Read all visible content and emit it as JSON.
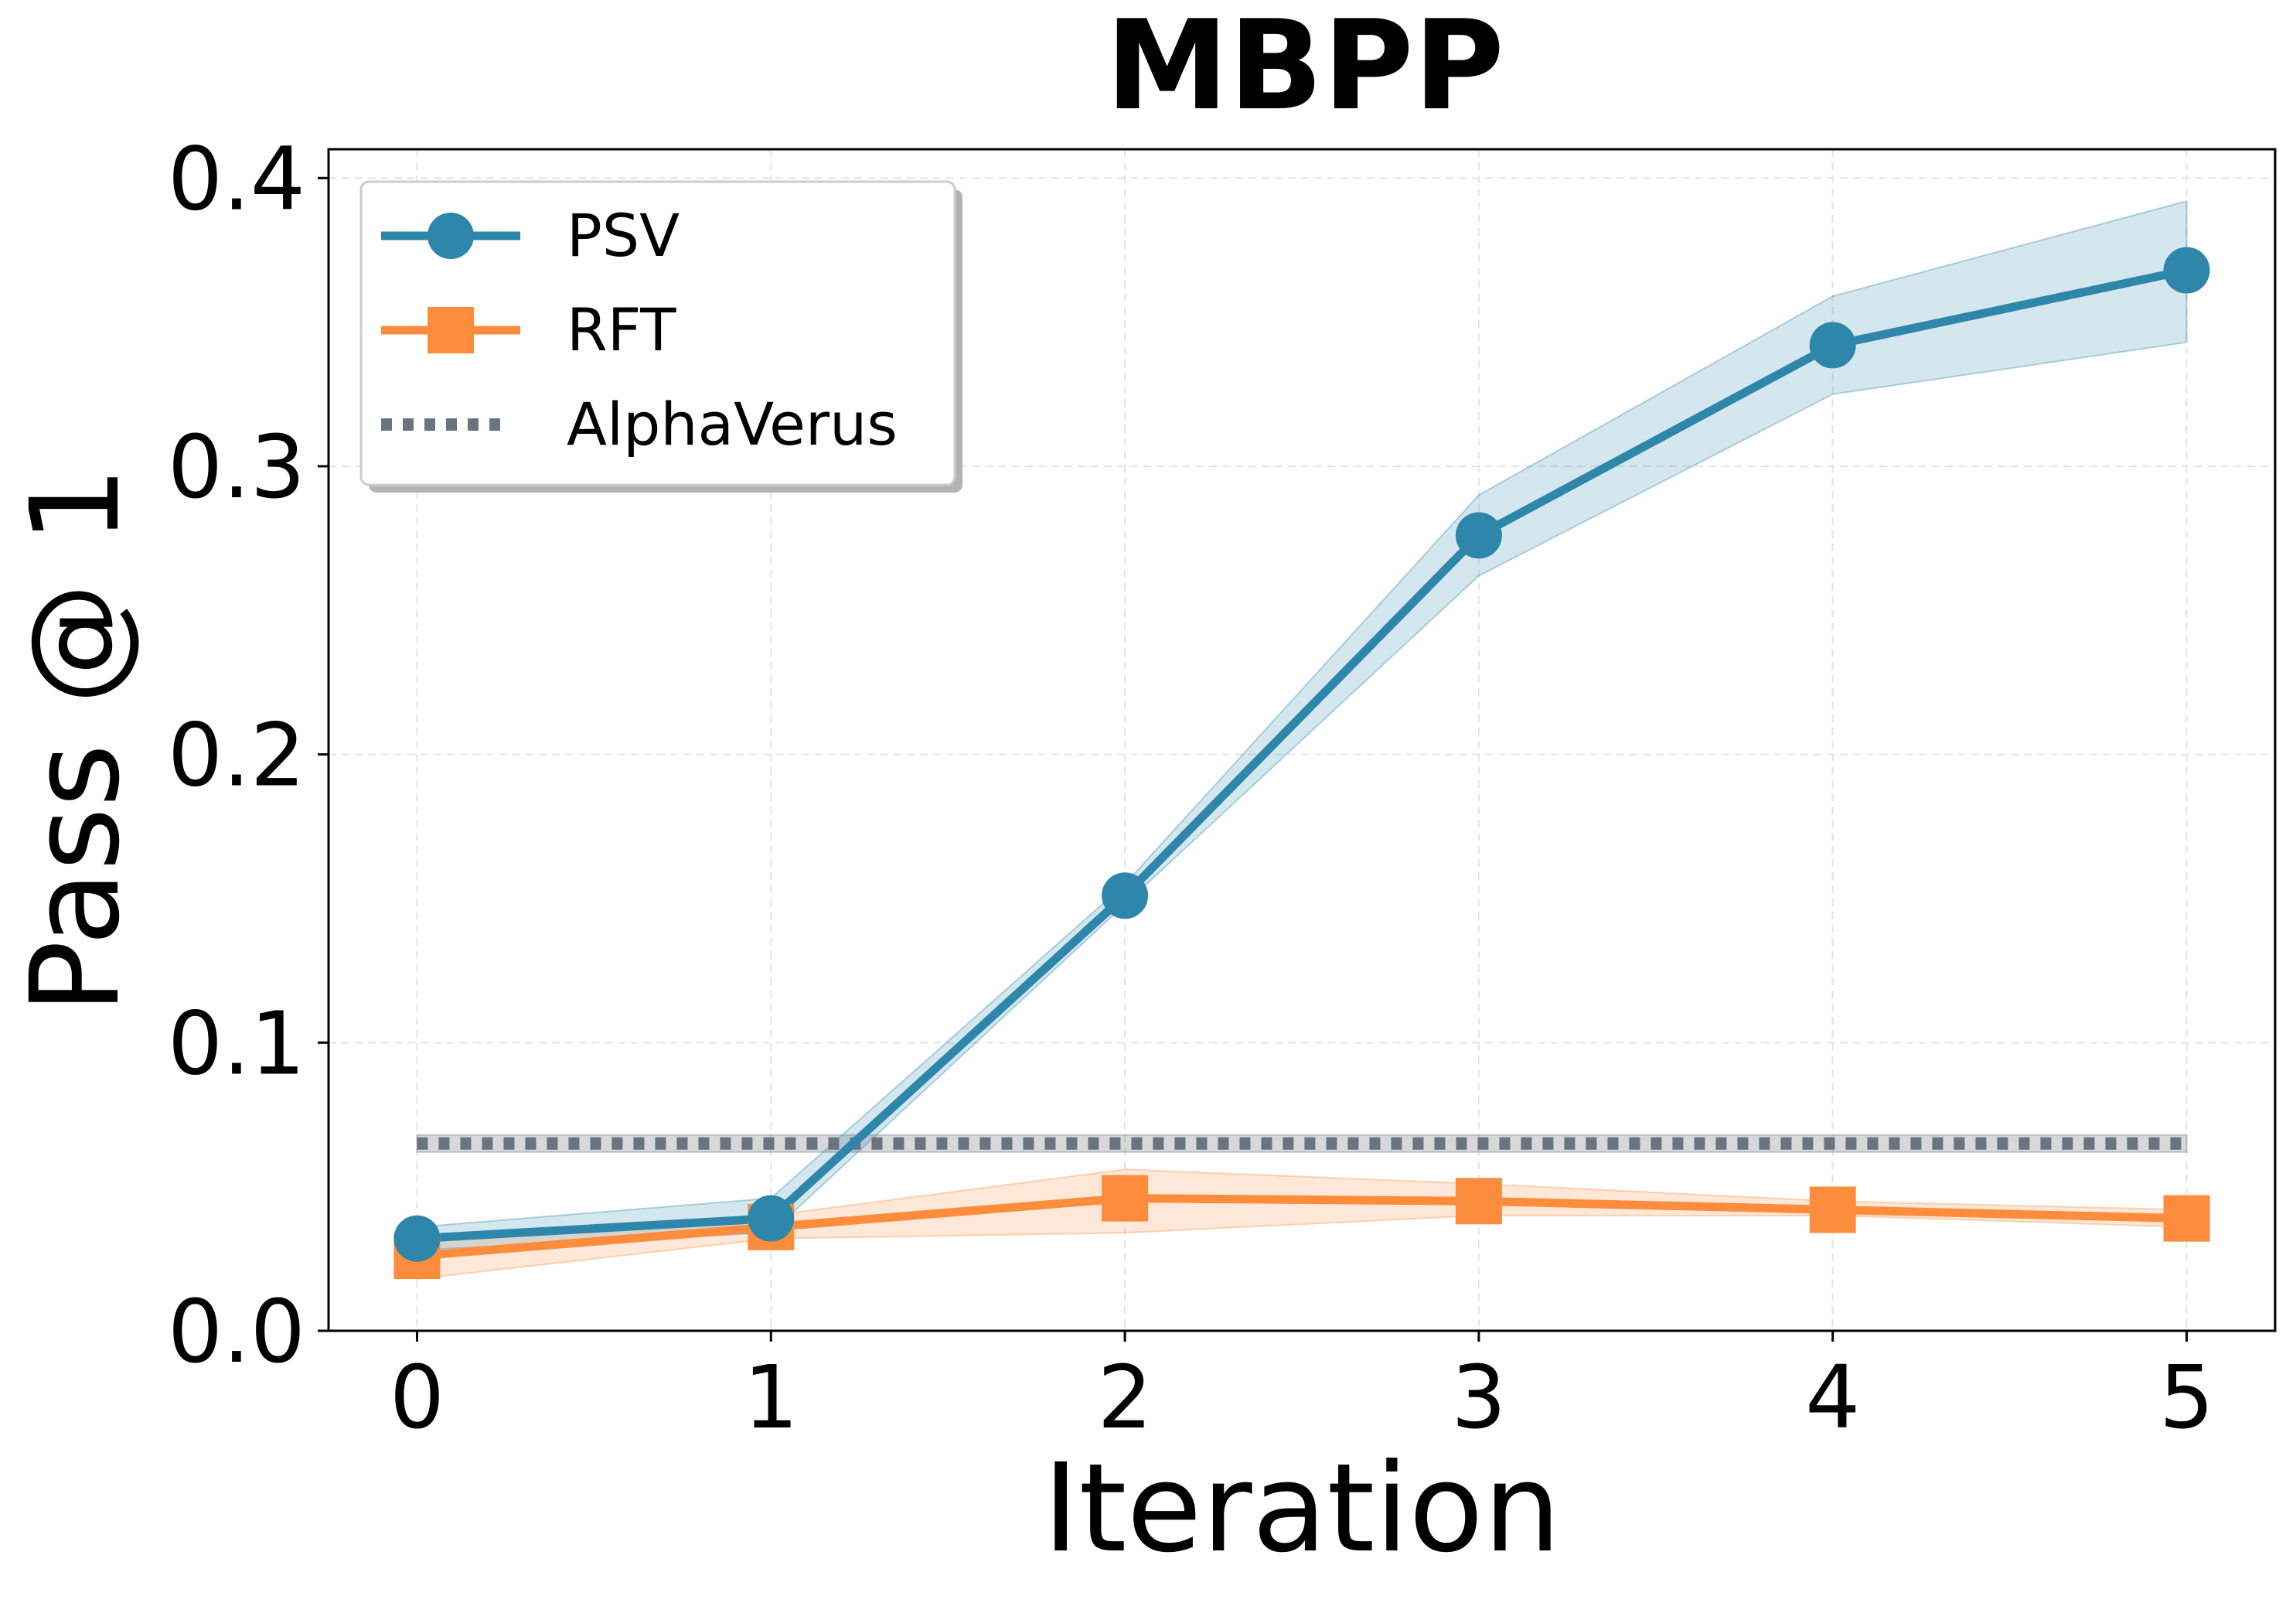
{
  "colors": {
    "psv": "#2e86ab",
    "rft": "#fd8d3c",
    "alphaverus": "#6b7280",
    "grid": "#e5e5e5"
  },
  "chart_data": {
    "type": "line",
    "title": "MBPP",
    "xlabel": "Iteration",
    "ylabel": "Pass @ 1",
    "x": [
      0,
      1,
      2,
      3,
      4,
      5
    ],
    "xlim": [
      -0.25,
      5.25
    ],
    "ylim": [
      0.0,
      0.41
    ],
    "xticks": [
      "0",
      "1",
      "2",
      "3",
      "4",
      "5"
    ],
    "yticks": [
      "0.0",
      "0.1",
      "0.2",
      "0.3",
      "0.4"
    ],
    "grid": true,
    "legend_position": "top-left",
    "series": [
      {
        "name": "PSV",
        "marker": "circle",
        "values": [
          0.032,
          0.039,
          0.151,
          0.276,
          0.342,
          0.368
        ],
        "lower": [
          0.028,
          0.034,
          0.148,
          0.262,
          0.325,
          0.343
        ],
        "upper": [
          0.036,
          0.046,
          0.155,
          0.29,
          0.359,
          0.392
        ]
      },
      {
        "name": "RFT",
        "marker": "square",
        "values": [
          0.026,
          0.036,
          0.046,
          0.045,
          0.042,
          0.039
        ],
        "lower": [
          0.018,
          0.032,
          0.034,
          0.04,
          0.04,
          0.036
        ],
        "upper": [
          0.032,
          0.04,
          0.056,
          0.051,
          0.045,
          0.042
        ]
      },
      {
        "name": "AlphaVerus",
        "marker": "none",
        "style": "dotted",
        "values": [
          0.065,
          0.065,
          0.065,
          0.065,
          0.065,
          0.065
        ],
        "lower": [
          0.062,
          0.062,
          0.062,
          0.062,
          0.062,
          0.062
        ],
        "upper": [
          0.068,
          0.068,
          0.068,
          0.068,
          0.068,
          0.068
        ]
      }
    ]
  }
}
